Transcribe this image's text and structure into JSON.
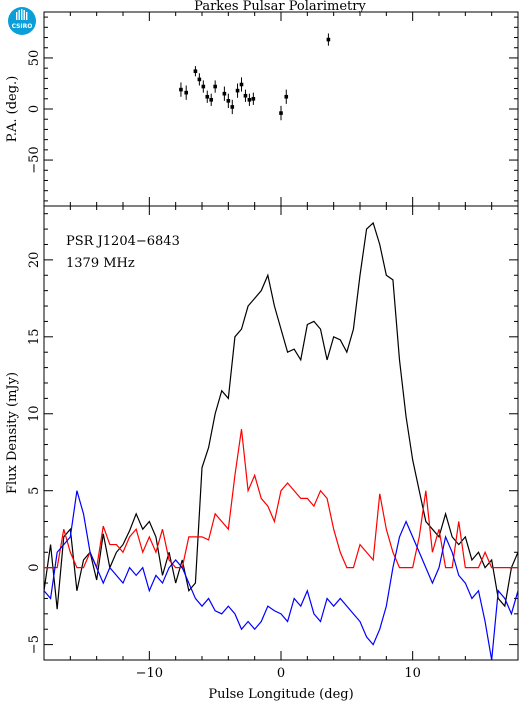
{
  "title": "Parkes Pulsar Polarimetry",
  "logo": {
    "text": "CSIRO",
    "color": "#0a9fd8"
  },
  "chart_data": [
    {
      "type": "scatter",
      "panel": "position-angle",
      "ylabel": "P.A. (deg.)",
      "xlim": [
        -18,
        18
      ],
      "ylim": [
        -95,
        95
      ],
      "yticks": [
        -50,
        0,
        50
      ],
      "xticks": [
        -10,
        0,
        10
      ],
      "points": [
        {
          "x": -7.6,
          "y": 19,
          "err": 7
        },
        {
          "x": -7.2,
          "y": 16,
          "err": 7
        },
        {
          "x": -6.5,
          "y": 37,
          "err": 5
        },
        {
          "x": -6.2,
          "y": 29,
          "err": 6
        },
        {
          "x": -5.9,
          "y": 22,
          "err": 6
        },
        {
          "x": -5.6,
          "y": 12,
          "err": 6
        },
        {
          "x": -5.3,
          "y": 9,
          "err": 6
        },
        {
          "x": -5.0,
          "y": 22,
          "err": 6
        },
        {
          "x": -4.3,
          "y": 15,
          "err": 7
        },
        {
          "x": -4.0,
          "y": 8,
          "err": 7
        },
        {
          "x": -3.7,
          "y": 2,
          "err": 7
        },
        {
          "x": -3.3,
          "y": 18,
          "err": 7
        },
        {
          "x": -3.0,
          "y": 24,
          "err": 7
        },
        {
          "x": -2.7,
          "y": 13,
          "err": 6
        },
        {
          "x": -2.4,
          "y": 9,
          "err": 6
        },
        {
          "x": -2.1,
          "y": 10,
          "err": 6
        },
        {
          "x": 0.0,
          "y": -4,
          "err": 7
        },
        {
          "x": 0.4,
          "y": 12,
          "err": 7
        },
        {
          "x": 3.6,
          "y": 68,
          "err": 6
        }
      ]
    },
    {
      "type": "line",
      "panel": "flux-profile",
      "xlabel": "Pulse Longitude (deg)",
      "ylabel": "Flux Density (mJy)",
      "xlim": [
        -18,
        18
      ],
      "ylim": [
        -6,
        23.5
      ],
      "yticks": [
        -5,
        0,
        5,
        10,
        15,
        20
      ],
      "xticks": [
        -10,
        0,
        10
      ],
      "annotations": [
        "PSR J1204−6843",
        "1379 MHz"
      ],
      "x_start": -18,
      "x_step": 0.5,
      "series": [
        {
          "color": "#000000",
          "values": [
            -1.5,
            1.5,
            -2.7,
            2.0,
            2.5,
            -1.5,
            0.5,
            1.0,
            -0.8,
            2.2,
            0.0,
            1.0,
            1.5,
            2.4,
            3.5,
            2.5,
            3.0,
            2.0,
            -0.5,
            1.0,
            -1.0,
            0.5,
            -1.5,
            -1.0,
            6.5,
            7.8,
            10.0,
            11.5,
            11.0,
            15.0,
            15.5,
            17.0,
            17.5,
            18.0,
            19.0,
            17.0,
            15.5,
            14.0,
            14.2,
            13.5,
            15.8,
            16.0,
            15.5,
            13.5,
            15.0,
            14.8,
            14.0,
            15.5,
            19.0,
            22.0,
            22.4,
            21.0,
            19.0,
            18.7,
            13.5,
            9.8,
            7.0,
            5.0,
            3.0,
            2.5,
            2.0,
            3.5,
            2.0,
            1.5,
            2.0,
            0.5,
            1.0,
            0.0,
            0.5,
            -2.0,
            -2.5,
            0.0,
            1.0,
            0.5,
            1.0,
            0.0,
            0.5,
            -1.5,
            1.0,
            1.0,
            0.5,
            0.0,
            -1.5,
            -1.0,
            1.0,
            -2.5,
            -0.5,
            -1.0,
            -1.0,
            -0.5,
            -1.0,
            0.0,
            -1.5,
            -1.0,
            0.5,
            -2.5,
            1.0,
            0.0,
            -1.0,
            0.0,
            1.0,
            -1.0
          ]
        },
        {
          "color": "#ff0000",
          "values": [
            0.0,
            0.0,
            0.0,
            2.5,
            1.0,
            0.0,
            0.0,
            1.0,
            0.0,
            2.7,
            1.5,
            1.5,
            1.0,
            2.0,
            2.5,
            1.0,
            2.0,
            1.0,
            2.5,
            0.5,
            0.0,
            0.0,
            2.0,
            2.0,
            2.0,
            1.8,
            3.5,
            3.0,
            2.5,
            6.0,
            9.0,
            5.0,
            6.0,
            4.5,
            4.0,
            3.0,
            5.0,
            5.5,
            5.0,
            4.5,
            4.5,
            4.0,
            5.0,
            4.5,
            2.5,
            1.0,
            0.0,
            0.0,
            1.5,
            1.0,
            0.5,
            4.8,
            2.5,
            1.0,
            0.0,
            0.0,
            0.0,
            2.0,
            5.0,
            1.0,
            2.5,
            0.0,
            0.0,
            3.0,
            0.0,
            0.0,
            0.0,
            1.0,
            0.0,
            0.0,
            0.0,
            0.0,
            0.0,
            0.0,
            1.0,
            3.0,
            0.0,
            0.0,
            0.0,
            2.0,
            0.0,
            1.0,
            0.5,
            2.0,
            0.0,
            3.0,
            0.0,
            1.0,
            0.0,
            0.0,
            2.0,
            2.5,
            1.0,
            0.0,
            0.0,
            0.5,
            1.5,
            0.0,
            1.0,
            2.5,
            3.0,
            1.0
          ]
        },
        {
          "color": "#0000ff",
          "values": [
            -1.5,
            -2.0,
            1.0,
            1.5,
            2.0,
            5.0,
            3.5,
            1.0,
            0.0,
            -1.0,
            0.0,
            -0.5,
            -1.0,
            0.0,
            -0.5,
            0.0,
            -1.5,
            -0.5,
            -1.0,
            0.0,
            0.5,
            0.0,
            -1.0,
            -2.0,
            -2.5,
            -2.0,
            -2.8,
            -3.0,
            -2.5,
            -3.0,
            -4.0,
            -3.5,
            -4.0,
            -3.5,
            -2.5,
            -2.8,
            -3.0,
            -3.5,
            -2.0,
            -2.5,
            -1.5,
            -3.0,
            -3.5,
            -2.0,
            -2.5,
            -2.0,
            -2.5,
            -3.0,
            -3.5,
            -4.5,
            -5.0,
            -4.0,
            -2.5,
            0.0,
            2.0,
            3.0,
            2.0,
            1.0,
            0.0,
            -1.0,
            0.0,
            2.0,
            1.0,
            -0.5,
            -1.0,
            -2.0,
            -1.5,
            -3.5,
            -6.0,
            -1.5,
            -2.0,
            -3.0,
            -1.5,
            -2.0,
            -0.5,
            -1.5,
            0.0,
            -1.5,
            -2.5,
            -2.0,
            -1.0,
            -1.5,
            -1.0,
            0.5,
            -1.0,
            0.0,
            -1.5,
            -1.5,
            -1.0,
            -1.0,
            -2.0,
            -1.5,
            -0.5,
            -2.0,
            -1.0,
            -1.5,
            -1.5,
            0.0,
            0.5,
            1.5,
            -1.5,
            -2.5
          ]
        }
      ]
    }
  ]
}
